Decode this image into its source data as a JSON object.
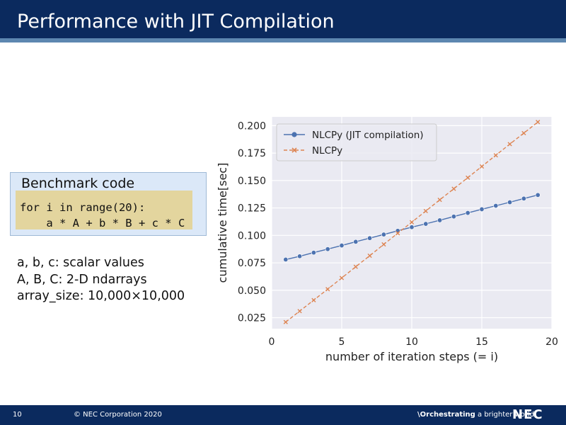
{
  "slide": {
    "title": "Performance with JIT Compilation"
  },
  "benchmark": {
    "label": "Benchmark code",
    "code_line_1": "for i in range(20):",
    "code_line_2": "    a * A + b * B + c * C"
  },
  "notes": [
    "a, b, c: scalar values",
    "A, B, C: 2-D ndarrays",
    "array_size: 10,000×10,000"
  ],
  "footer": {
    "page_number": "10",
    "copyright": "© NEC Corporation 2020",
    "tagline_slash": "\\",
    "tagline_strong": "Orchestrating",
    "tagline_rest": " a brighter world",
    "logo": "NEC"
  },
  "colors": {
    "title_bar": "#0b2a5e",
    "series_jit": "#4c72b0",
    "series_plain": "#dd8452",
    "plot_bg": "#eaeaf2"
  },
  "chart_data": {
    "type": "line",
    "title": "",
    "xlabel": "number of iteration steps (= i)",
    "ylabel": "cumulative time[sec]",
    "xlim": [
      0,
      20
    ],
    "ylim": [
      0.015,
      0.208
    ],
    "xticks": [
      0,
      5,
      10,
      15,
      20
    ],
    "yticks": [
      0.025,
      0.05,
      0.075,
      0.1,
      0.125,
      0.15,
      0.175,
      0.2
    ],
    "ytick_labels": [
      "0.025",
      "0.050",
      "0.075",
      "0.100",
      "0.125",
      "0.150",
      "0.175",
      "0.200"
    ],
    "grid": true,
    "legend_position": "top-left",
    "x": [
      1,
      2,
      3,
      4,
      5,
      6,
      7,
      8,
      9,
      10,
      11,
      12,
      13,
      14,
      15,
      16,
      17,
      18,
      19
    ],
    "series": [
      {
        "name": "NLCPy (JIT compilation)",
        "marker": "circle",
        "linestyle": "solid",
        "color": "#4c72b0",
        "values": [
          0.078,
          0.081,
          0.0843,
          0.0875,
          0.0908,
          0.0942,
          0.0975,
          0.1008,
          0.1042,
          0.1075,
          0.1105,
          0.1138,
          0.1172,
          0.1205,
          0.1238,
          0.127,
          0.1302,
          0.1336,
          0.1368
        ]
      },
      {
        "name": "NLCPy",
        "marker": "x",
        "linestyle": "dashed",
        "color": "#dd8452",
        "values": [
          0.021,
          0.031,
          0.041,
          0.051,
          0.0612,
          0.0714,
          0.0815,
          0.0918,
          0.102,
          0.112,
          0.1222,
          0.1324,
          0.1425,
          0.1526,
          0.1628,
          0.173,
          0.1832,
          0.1932,
          0.2033
        ]
      }
    ]
  }
}
